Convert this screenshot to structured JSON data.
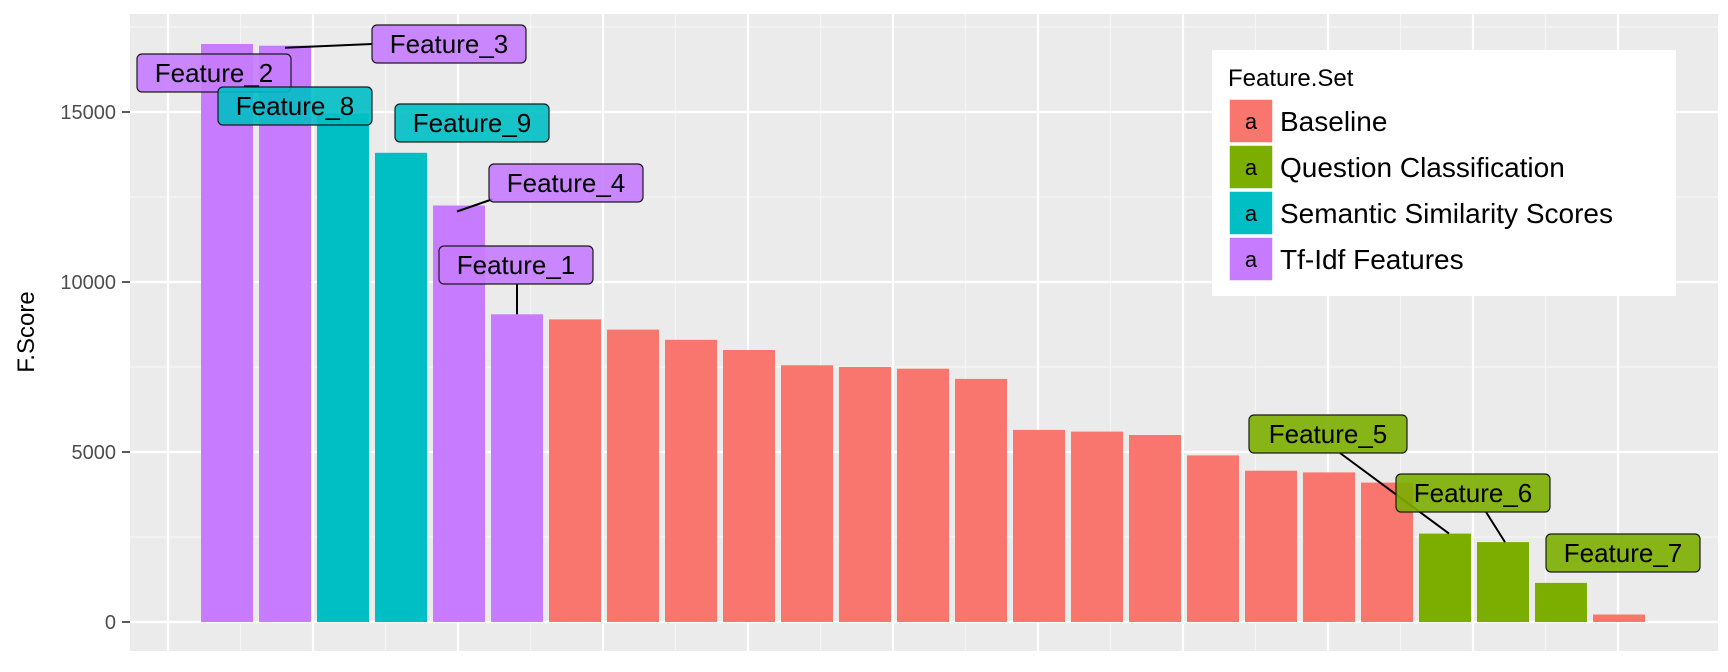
{
  "chart_data": {
    "type": "bar",
    "title": "",
    "xlabel": "",
    "ylabel": "F.Score",
    "ylim": [
      0,
      17600
    ],
    "yticks": [
      0,
      5000,
      10000,
      15000
    ],
    "ytick_labels": [
      "0",
      "5000",
      "10000",
      "15000"
    ],
    "grid": true,
    "legend": {
      "title": "Feature.Set",
      "placement": "top-right",
      "key_glyph": "a",
      "entries": [
        {
          "name": "Baseline",
          "color": "#F8766D"
        },
        {
          "name": "Question Classification",
          "color": "#7CAE00"
        },
        {
          "name": "Semantic Similarity Scores",
          "color": "#00BFC4"
        },
        {
          "name": "Tf-Idf Features",
          "color": "#C77CFF"
        }
      ]
    },
    "bars": [
      {
        "value": 17000,
        "set": "Tf-Idf Features",
        "label": "Feature_2"
      },
      {
        "value": 16950,
        "set": "Tf-Idf Features",
        "label": "Feature_3"
      },
      {
        "value": 14950,
        "set": "Semantic Similarity Scores",
        "label": "Feature_8"
      },
      {
        "value": 13800,
        "set": "Semantic Similarity Scores",
        "label": "Feature_9"
      },
      {
        "value": 12250,
        "set": "Tf-Idf Features",
        "label": "Feature_4"
      },
      {
        "value": 9050,
        "set": "Tf-Idf Features",
        "label": "Feature_1"
      },
      {
        "value": 8900,
        "set": "Baseline",
        "label": ""
      },
      {
        "value": 8600,
        "set": "Baseline",
        "label": ""
      },
      {
        "value": 8300,
        "set": "Baseline",
        "label": ""
      },
      {
        "value": 8000,
        "set": "Baseline",
        "label": ""
      },
      {
        "value": 7550,
        "set": "Baseline",
        "label": ""
      },
      {
        "value": 7500,
        "set": "Baseline",
        "label": ""
      },
      {
        "value": 7450,
        "set": "Baseline",
        "label": ""
      },
      {
        "value": 7150,
        "set": "Baseline",
        "label": ""
      },
      {
        "value": 5650,
        "set": "Baseline",
        "label": ""
      },
      {
        "value": 5600,
        "set": "Baseline",
        "label": ""
      },
      {
        "value": 5500,
        "set": "Baseline",
        "label": ""
      },
      {
        "value": 4900,
        "set": "Baseline",
        "label": ""
      },
      {
        "value": 4450,
        "set": "Baseline",
        "label": ""
      },
      {
        "value": 4400,
        "set": "Baseline",
        "label": ""
      },
      {
        "value": 4100,
        "set": "Baseline",
        "label": ""
      },
      {
        "value": 2600,
        "set": "Question Classification",
        "label": "Feature_5"
      },
      {
        "value": 2350,
        "set": "Question Classification",
        "label": "Feature_6"
      },
      {
        "value": 1150,
        "set": "Question Classification",
        "label": "Feature_7"
      },
      {
        "value": 220,
        "set": "Baseline",
        "label": ""
      }
    ]
  }
}
